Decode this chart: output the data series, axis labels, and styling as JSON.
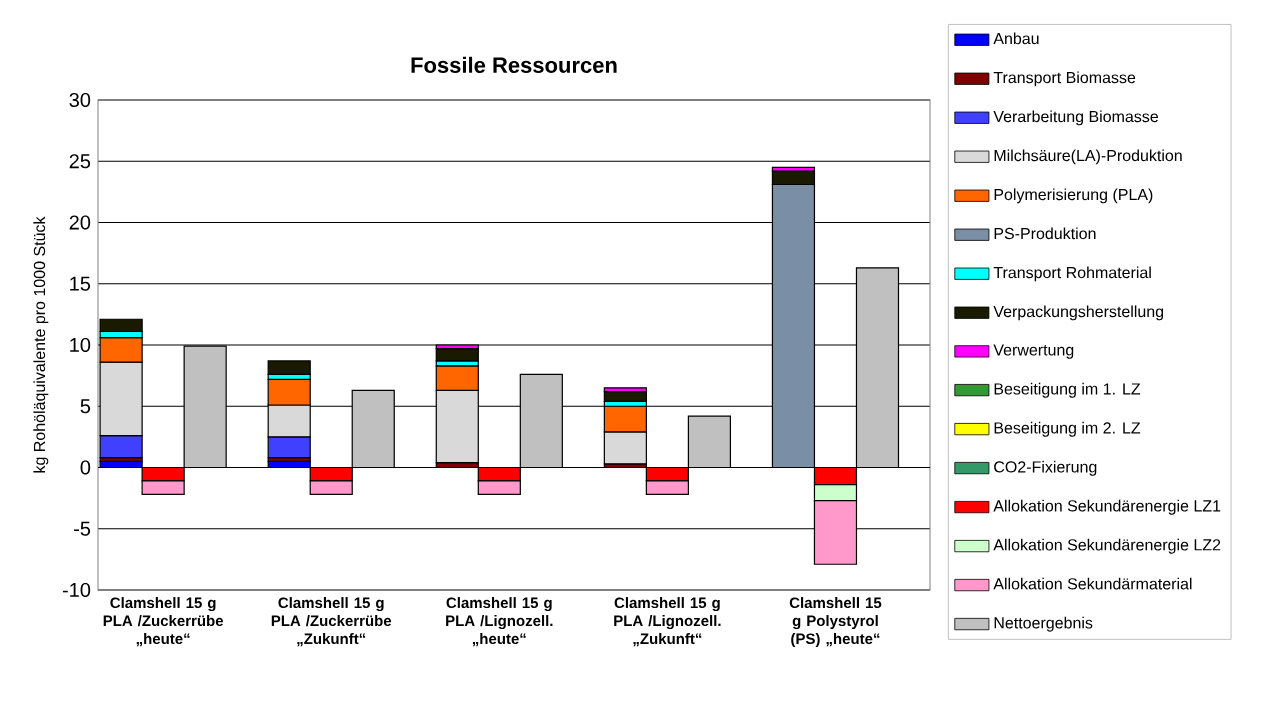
{
  "chart_data": {
    "type": "bar",
    "title": "Fossile Ressourcen",
    "ylabel": "kg Rohöläquivalente pro 1000 Stück",
    "stacked": true,
    "categories": [
      null,
      "Clamshell 15 g PLA /Zuckerrübe „heute“",
      null,
      null,
      "Clamshell 15 g PLA /Zuckerrübe „Zukunft“",
      null,
      null,
      "Clamshell 15 g PLA /Lignozell. „heute“",
      null,
      null,
      "Clamshell 15 g PLA /Lignozell. „Zukunft“",
      null,
      null,
      "Clamshell 15 g Polystyrol (PS) „heute“",
      null
    ],
    "series": [
      {
        "name": "Anbau",
        "color": "#0000ff",
        "values": [
          0.5,
          null,
          null,
          0.5,
          null,
          null,
          null,
          null,
          null,
          null,
          null,
          null,
          null,
          null,
          null
        ]
      },
      {
        "name": "Transport Biomasse",
        "color": "#800000",
        "values": [
          0.3,
          null,
          null,
          0.3,
          null,
          null,
          0.4,
          null,
          null,
          0.3,
          null,
          null,
          null,
          null,
          null
        ]
      },
      {
        "name": "Verarbeitung Biomasse",
        "color": "#4040ff",
        "values": [
          1.8,
          null,
          null,
          1.7,
          null,
          null,
          null,
          null,
          null,
          null,
          null,
          null,
          null,
          null,
          null
        ]
      },
      {
        "name": "Milchsäure(LA)-Produktion",
        "color": "#d9d9d9",
        "values": [
          6.0,
          null,
          null,
          2.6,
          null,
          null,
          5.9,
          null,
          null,
          2.6,
          null,
          null,
          null,
          null,
          null
        ]
      },
      {
        "name": "Polymerisierung (PLA)",
        "color": "#ff6600",
        "values": [
          2.0,
          null,
          null,
          2.1,
          null,
          null,
          2.0,
          null,
          null,
          2.1,
          null,
          null,
          null,
          null,
          null
        ]
      },
      {
        "name": "PS-Produktion",
        "color": "#7a8ea6",
        "values": [
          null,
          null,
          null,
          null,
          null,
          null,
          null,
          null,
          null,
          null,
          null,
          null,
          23.1,
          null,
          null
        ]
      },
      {
        "name": "Transport Rohmaterial",
        "color": "#00ffff",
        "values": [
          0.5,
          null,
          null,
          0.4,
          null,
          null,
          0.4,
          null,
          null,
          0.4,
          null,
          null,
          null,
          null,
          null
        ]
      },
      {
        "name": "Verpackungsherstellung",
        "color": "#1a1a00",
        "values": [
          1.0,
          null,
          null,
          1.1,
          null,
          null,
          1.0,
          null,
          null,
          0.8,
          null,
          null,
          1.1,
          null,
          null
        ]
      },
      {
        "name": "Verwertung",
        "color": "#ff00ff",
        "values": [
          null,
          null,
          null,
          null,
          null,
          null,
          0.3,
          null,
          null,
          0.3,
          null,
          null,
          0.3,
          null,
          null
        ]
      },
      {
        "name": "Beseitigung im 1. LZ",
        "color": "#339933",
        "values": [
          null,
          null,
          null,
          null,
          null,
          null,
          null,
          null,
          null,
          null,
          null,
          null,
          null,
          null,
          null
        ]
      },
      {
        "name": "Beseitigung im 2. LZ",
        "color": "#ffff00",
        "values": [
          null,
          null,
          null,
          null,
          null,
          null,
          null,
          null,
          null,
          null,
          null,
          null,
          null,
          null,
          null
        ]
      },
      {
        "name": "CO2-Fixierung",
        "color": "#339966",
        "values": [
          null,
          null,
          null,
          null,
          null,
          null,
          null,
          null,
          null,
          null,
          null,
          null,
          null,
          null,
          null
        ]
      },
      {
        "name": "Allokation Sekundärenergie LZ1",
        "color": "#ff0000",
        "values": [
          null,
          -1.1,
          null,
          null,
          -1.1,
          null,
          null,
          -1.1,
          null,
          null,
          -1.1,
          null,
          null,
          -1.4,
          null
        ]
      },
      {
        "name": "Allokation Sekundärenergie LZ2",
        "color": "#ccffcc",
        "values": [
          null,
          null,
          null,
          null,
          null,
          null,
          null,
          null,
          null,
          null,
          null,
          null,
          null,
          -1.3,
          null
        ]
      },
      {
        "name": "Allokation Sekundärmaterial",
        "color": "#ff99cc",
        "values": [
          null,
          -1.1,
          null,
          null,
          -1.1,
          null,
          null,
          -1.1,
          null,
          null,
          -1.1,
          null,
          null,
          -5.2,
          null
        ]
      },
      {
        "name": "Nettoergebnis",
        "color": "#c0c0c0",
        "values": [
          null,
          null,
          9.9,
          null,
          null,
          6.3,
          null,
          null,
          7.6,
          null,
          null,
          4.2,
          null,
          null,
          16.3
        ]
      }
    ],
    "ylim": [
      -10,
      30
    ],
    "yticks": [
      -10,
      -5,
      0,
      5,
      10,
      15,
      20,
      25,
      30
    ],
    "grid": "y",
    "legend": "right"
  }
}
